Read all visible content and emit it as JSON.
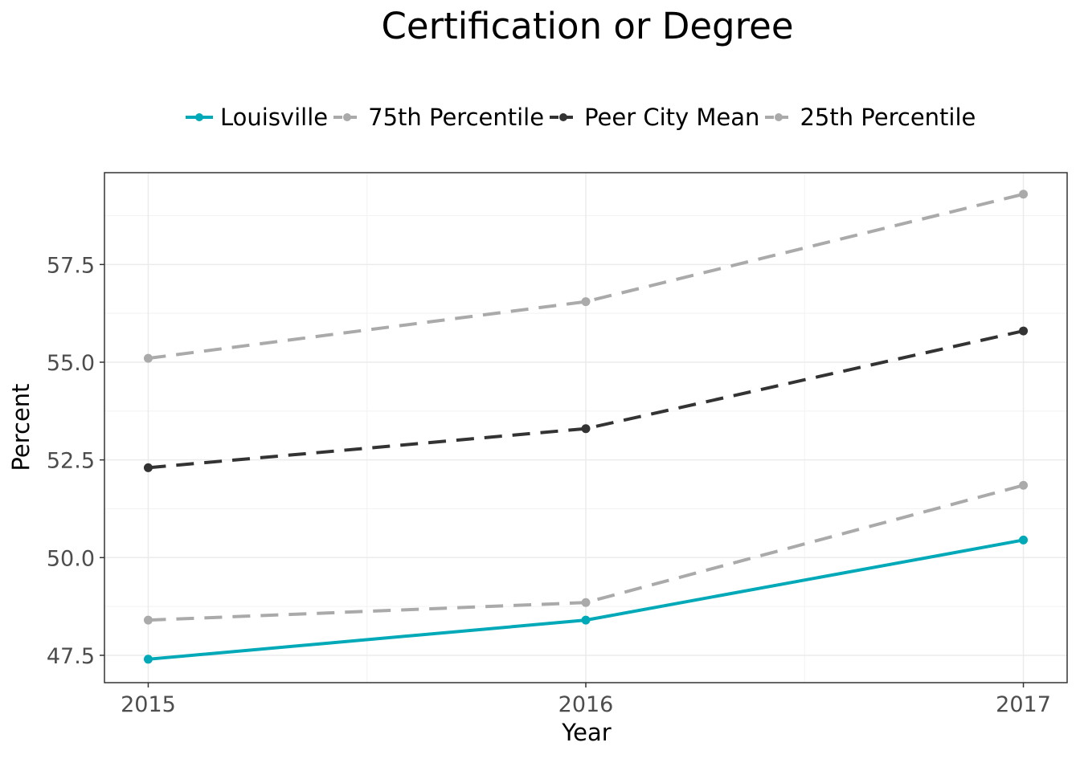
{
  "chart_data": {
    "type": "line",
    "title": "Certification or Degree",
    "xlabel": "Year",
    "ylabel": "Percent",
    "x": [
      2015,
      2016,
      2017
    ],
    "xlim": [
      2014.9,
      2017.1
    ],
    "ylim": [
      46.8,
      59.85
    ],
    "y_ticks": [
      47.5,
      50.0,
      52.5,
      55.0,
      57.5
    ],
    "y_tick_labels": [
      "47.5",
      "50.0",
      "52.5",
      "55.0",
      "57.5"
    ],
    "x_tick_labels": [
      "2015",
      "2016",
      "2017"
    ],
    "grid": true,
    "legend_position": "top",
    "series": [
      {
        "name": "Louisville",
        "values": [
          47.4,
          48.4,
          50.45
        ],
        "color": "#00a9b7",
        "dash": "solid"
      },
      {
        "name": "75th Percentile",
        "values": [
          55.1,
          56.55,
          59.3
        ],
        "color": "#aaaaaa",
        "dash": "dashed"
      },
      {
        "name": "Peer City Mean",
        "values": [
          52.3,
          53.3,
          55.8
        ],
        "color": "#333333",
        "dash": "dashed"
      },
      {
        "name": "25th Percentile",
        "values": [
          48.4,
          48.85,
          51.85
        ],
        "color": "#aaaaaa",
        "dash": "dashed"
      }
    ]
  }
}
